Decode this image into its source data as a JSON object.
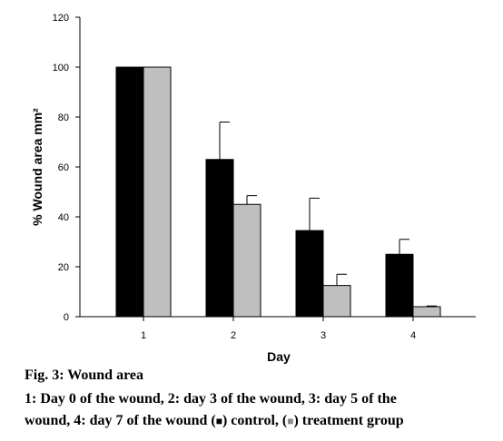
{
  "chart_data": {
    "type": "bar",
    "categories": [
      "1",
      "2",
      "3",
      "4"
    ],
    "series": [
      {
        "name": "control",
        "color": "#000000",
        "values": [
          100,
          63,
          34.5,
          25
        ],
        "errors": [
          0,
          15,
          13,
          6
        ]
      },
      {
        "name": "treatment group",
        "color": "#bfbfbf",
        "values": [
          100,
          45,
          12.5,
          4
        ],
        "errors": [
          0,
          3.5,
          4.5,
          0.3
        ]
      }
    ],
    "xlabel": "Day",
    "ylabel": "% Wound area mm²",
    "ylim": [
      0,
      120
    ],
    "yticks": [
      0,
      20,
      40,
      60,
      80,
      100,
      120
    ],
    "grid": false,
    "legend": "none"
  },
  "caption": {
    "title": "Fig. 3: Wound area",
    "line1": "1: Day 0 of the wound, 2: day 3 of the wound, 3: day 5 of the",
    "line2_start": "wound, 4: day 7 of the wound (",
    "control_symbol": "■",
    "line2_mid": ") control, (",
    "treatment_symbol": "■",
    "line2_end": ") treatment group"
  }
}
